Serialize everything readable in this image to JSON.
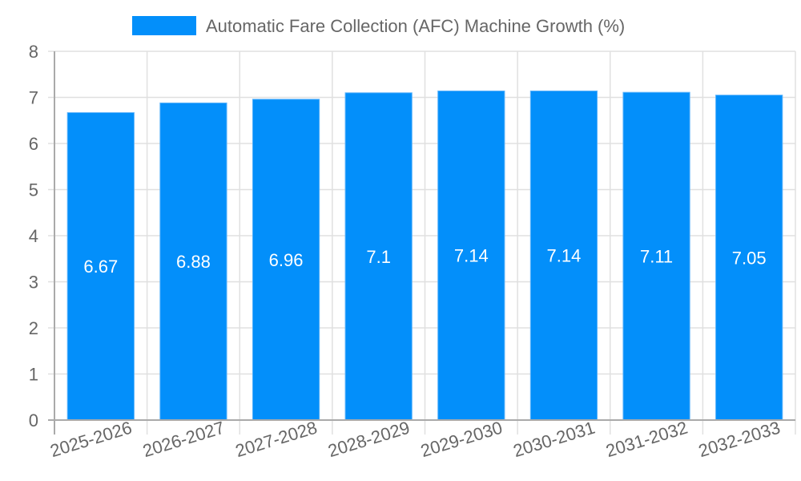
{
  "chart_data": {
    "type": "bar",
    "title": "",
    "legend": [
      {
        "label": "Automatic Fare Collection (AFC) Machine Growth (%)",
        "color": "#038ffa"
      }
    ],
    "legend_position": "top",
    "categories": [
      "2025-2026",
      "2026-2027",
      "2027-2028",
      "2028-2029",
      "2029-2030",
      "2030-2031",
      "2031-2032",
      "2032-2033"
    ],
    "series": [
      {
        "name": "Automatic Fare Collection (AFC) Machine Growth (%)",
        "values": [
          6.67,
          6.88,
          6.96,
          7.1,
          7.14,
          7.14,
          7.11,
          7.05
        ],
        "color": "#038ffa"
      }
    ],
    "data_labels": [
      "6.67",
      "6.88",
      "6.96",
      "7.1",
      "7.14",
      "7.14",
      "7.11",
      "7.05"
    ],
    "xlabel": "",
    "ylabel": "",
    "ylim": [
      0,
      8
    ],
    "y_ticks": [
      "0",
      "1",
      "2",
      "3",
      "4",
      "5",
      "6",
      "7",
      "8"
    ],
    "grid": true
  }
}
